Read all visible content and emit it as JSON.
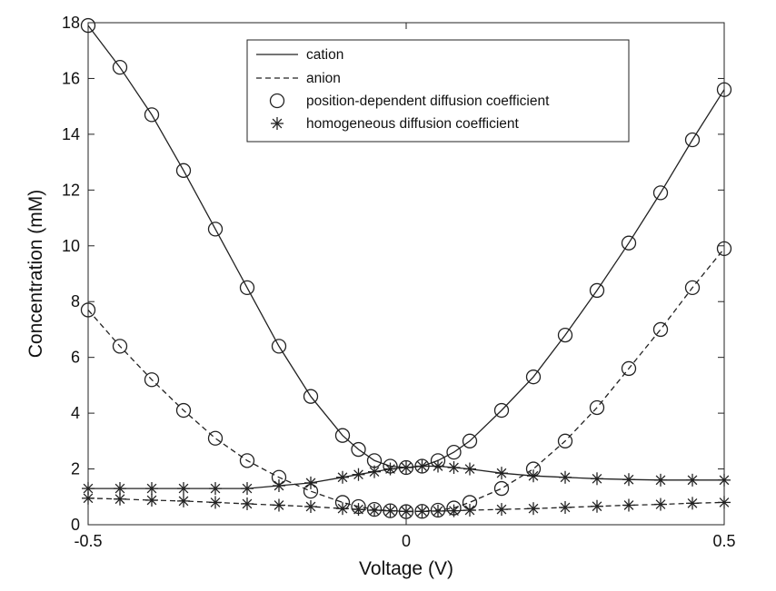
{
  "chart_data": {
    "type": "line",
    "xlabel": "Voltage (V)",
    "ylabel": "Concentration (mM)",
    "xlim": [
      -0.5,
      0.5
    ],
    "ylim": [
      0,
      18
    ],
    "xticks": [
      -0.5,
      0,
      0.5
    ],
    "xtick_labels": [
      "-0.5",
      "0",
      "0.5"
    ],
    "yticks": [
      0,
      2,
      4,
      6,
      8,
      10,
      12,
      14,
      16,
      18
    ],
    "ytick_labels": [
      "0",
      "2",
      "4",
      "6",
      "8",
      "10",
      "12",
      "14",
      "16",
      "18"
    ],
    "grid": false,
    "legend_position": "top-center",
    "legend": [
      {
        "label": "cation",
        "symbol": "solid-line"
      },
      {
        "label": "anion",
        "symbol": "dashed-line"
      },
      {
        "label": "position-dependent diffusion coefficient",
        "symbol": "circle"
      },
      {
        "label": "homogeneous diffusion coefficient",
        "symbol": "asterisk"
      }
    ],
    "series": [
      {
        "legend_group": "position-dependent diffusion coefficient",
        "line": "solid",
        "marker": "circle",
        "x": [
          -0.5,
          -0.45,
          -0.4,
          -0.35,
          -0.3,
          -0.25,
          -0.2,
          -0.15,
          -0.1,
          -0.075,
          -0.05,
          -0.025,
          0,
          0.025,
          0.05,
          0.075,
          0.1,
          0.15,
          0.2,
          0.25,
          0.3,
          0.35,
          0.4,
          0.45,
          0.5
        ],
        "y": [
          17.9,
          16.4,
          14.7,
          12.7,
          10.6,
          8.5,
          6.4,
          4.6,
          3.2,
          2.7,
          2.3,
          2.1,
          2.05,
          2.1,
          2.3,
          2.6,
          3.0,
          4.1,
          5.3,
          6.8,
          8.4,
          10.1,
          11.9,
          13.8,
          15.6
        ]
      },
      {
        "legend_group": "position-dependent diffusion coefficient",
        "line": "dashed",
        "marker": "circle",
        "x": [
          -0.5,
          -0.45,
          -0.4,
          -0.35,
          -0.3,
          -0.25,
          -0.2,
          -0.15,
          -0.1,
          -0.075,
          -0.05,
          -0.025,
          0,
          0.025,
          0.05,
          0.075,
          0.1,
          0.15,
          0.2,
          0.25,
          0.3,
          0.35,
          0.4,
          0.45,
          0.5
        ],
        "y": [
          7.7,
          6.4,
          5.2,
          4.1,
          3.1,
          2.3,
          1.7,
          1.2,
          0.8,
          0.65,
          0.55,
          0.5,
          0.47,
          0.48,
          0.52,
          0.6,
          0.8,
          1.3,
          2.0,
          3.0,
          4.2,
          5.6,
          7.0,
          8.5,
          9.9
        ]
      },
      {
        "legend_group": "homogeneous diffusion coefficient",
        "line": "solid",
        "marker": "asterisk",
        "x": [
          -0.5,
          -0.45,
          -0.4,
          -0.35,
          -0.3,
          -0.25,
          -0.2,
          -0.15,
          -0.1,
          -0.075,
          -0.05,
          -0.025,
          0,
          0.025,
          0.05,
          0.075,
          0.1,
          0.15,
          0.2,
          0.25,
          0.3,
          0.35,
          0.4,
          0.45,
          0.5
        ],
        "y": [
          1.3,
          1.3,
          1.3,
          1.3,
          1.3,
          1.3,
          1.4,
          1.5,
          1.7,
          1.8,
          1.9,
          2.0,
          2.05,
          2.1,
          2.1,
          2.05,
          2.0,
          1.85,
          1.75,
          1.7,
          1.65,
          1.62,
          1.6,
          1.6,
          1.6
        ]
      },
      {
        "legend_group": "homogeneous diffusion coefficient",
        "line": "dashed",
        "marker": "asterisk",
        "x": [
          -0.5,
          -0.45,
          -0.4,
          -0.35,
          -0.3,
          -0.25,
          -0.2,
          -0.15,
          -0.1,
          -0.075,
          -0.05,
          -0.025,
          0,
          0.025,
          0.05,
          0.075,
          0.1,
          0.15,
          0.2,
          0.25,
          0.3,
          0.35,
          0.4,
          0.45,
          0.5
        ],
        "y": [
          0.95,
          0.92,
          0.88,
          0.85,
          0.8,
          0.75,
          0.7,
          0.65,
          0.58,
          0.55,
          0.52,
          0.5,
          0.48,
          0.48,
          0.49,
          0.5,
          0.52,
          0.55,
          0.58,
          0.62,
          0.66,
          0.7,
          0.73,
          0.77,
          0.8
        ]
      }
    ]
  }
}
